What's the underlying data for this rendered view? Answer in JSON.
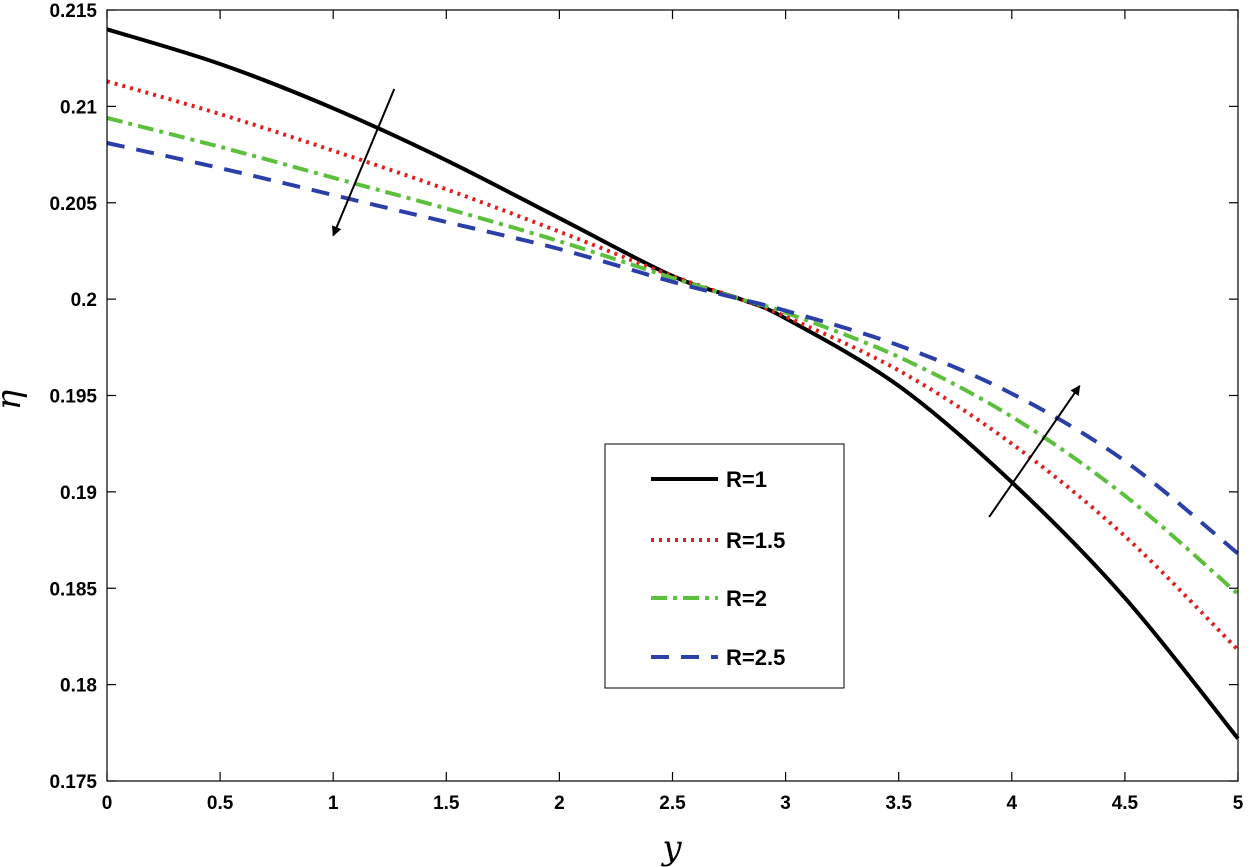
{
  "chart_data": {
    "type": "line",
    "xlabel": "y",
    "ylabel": "η",
    "xlim": [
      0,
      5
    ],
    "ylim": [
      0.175,
      0.215
    ],
    "xticks": [
      "0",
      "0.5",
      "1",
      "1.5",
      "2",
      "2.5",
      "3",
      "3.5",
      "4",
      "4.5",
      "5"
    ],
    "yticks": [
      "0.175",
      "0.18",
      "0.185",
      "0.19",
      "0.195",
      "0.2",
      "0.205",
      "0.21",
      "0.215"
    ],
    "grid": false,
    "legend_position": "lower-center",
    "x": [
      0,
      0.5,
      1,
      1.5,
      2,
      2.5,
      2.8,
      3,
      3.5,
      4,
      4.5,
      5
    ],
    "series": [
      {
        "name": "R=1",
        "color": "#000000",
        "style": "solid",
        "values": [
          0.214,
          0.2122,
          0.2099,
          0.2072,
          0.2042,
          0.2012,
          0.2,
          0.199,
          0.1955,
          0.1905,
          0.1845,
          0.1772
        ]
      },
      {
        "name": "R=1.5",
        "color": "#e02020",
        "style": "dotted",
        "values": [
          0.2113,
          0.2096,
          0.2077,
          0.2057,
          0.2035,
          0.2012,
          0.2,
          0.1991,
          0.1963,
          0.1925,
          0.1877,
          0.1818
        ]
      },
      {
        "name": "R=2",
        "color": "#5cc03c",
        "style": "dashdot",
        "values": [
          0.2094,
          0.2079,
          0.2063,
          0.2047,
          0.203,
          0.2011,
          0.2,
          0.1993,
          0.197,
          0.1939,
          0.1898,
          0.1847
        ]
      },
      {
        "name": "R=2.5",
        "color": "#2b3fa8",
        "style": "dashed",
        "values": [
          0.2081,
          0.2068,
          0.2054,
          0.204,
          0.2026,
          0.2009,
          0.2,
          0.1994,
          0.1976,
          0.1951,
          0.1916,
          0.1868
        ]
      }
    ],
    "annotations": [
      {
        "type": "arrow",
        "from": [
          1.27,
          0.2109
        ],
        "to": [
          1.0,
          0.2033
        ]
      },
      {
        "type": "arrow",
        "from": [
          3.9,
          0.1887
        ],
        "to": [
          4.3,
          0.1955
        ]
      }
    ]
  }
}
